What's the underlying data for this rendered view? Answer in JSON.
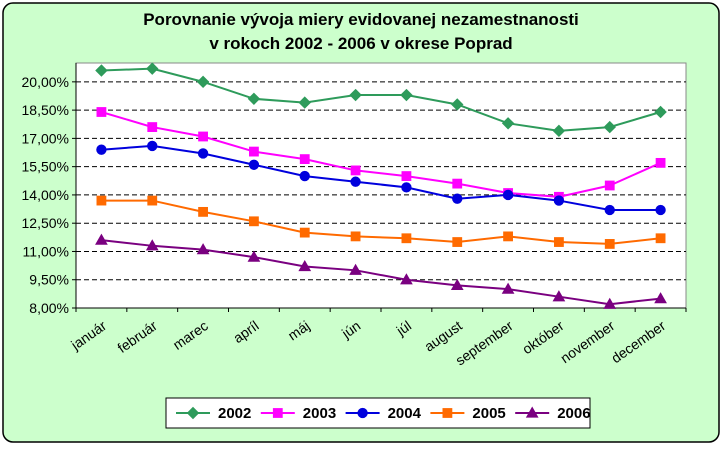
{
  "chart_data": {
    "type": "line",
    "title": [
      "Porovnanie vývoja miery evidovanej nezamestnanosti",
      "v rokoch 2002 - 2006 v okrese Poprad"
    ],
    "xlabel": "",
    "ylabel": "",
    "categories": [
      "január",
      "február",
      "marec",
      "apríl",
      "máj",
      "jún",
      "júl",
      "august",
      "september",
      "október",
      "november",
      "december"
    ],
    "ylim": [
      8.0,
      21.0
    ],
    "yticks": [
      8.0,
      9.5,
      11.0,
      12.5,
      14.0,
      15.5,
      17.0,
      18.5,
      20.0
    ],
    "ytick_labels": [
      "8,00%",
      "9,50%",
      "11,00%",
      "12,50%",
      "14,00%",
      "15,50%",
      "17,00%",
      "18,50%",
      "20,00%"
    ],
    "grid": "horizontal dashed",
    "legend_position": "bottom",
    "series": [
      {
        "name": "2002",
        "color": "#2e9b5b",
        "marker": "diamond",
        "values": [
          20.6,
          20.7,
          20.0,
          19.1,
          18.9,
          19.3,
          19.3,
          18.8,
          17.8,
          17.4,
          17.6,
          18.4
        ]
      },
      {
        "name": "2003",
        "color": "#ff00ff",
        "marker": "square",
        "values": [
          18.4,
          17.6,
          17.1,
          16.3,
          15.9,
          15.3,
          15.0,
          14.6,
          14.1,
          13.9,
          14.5,
          15.7
        ]
      },
      {
        "name": "2004",
        "color": "#0000dd",
        "marker": "circle",
        "values": [
          16.4,
          16.6,
          16.2,
          15.6,
          15.0,
          14.7,
          14.4,
          13.8,
          14.0,
          13.7,
          13.2,
          13.2
        ]
      },
      {
        "name": "2005",
        "color": "#ff6a00",
        "marker": "square",
        "values": [
          13.7,
          13.7,
          13.1,
          12.6,
          12.0,
          11.8,
          11.7,
          11.5,
          11.8,
          11.5,
          11.4,
          11.7
        ]
      },
      {
        "name": "2006",
        "color": "#7a0080",
        "marker": "triangle",
        "values": [
          11.6,
          11.3,
          11.1,
          10.7,
          10.2,
          10.0,
          9.5,
          9.2,
          9.0,
          8.6,
          8.2,
          8.5
        ]
      }
    ]
  }
}
